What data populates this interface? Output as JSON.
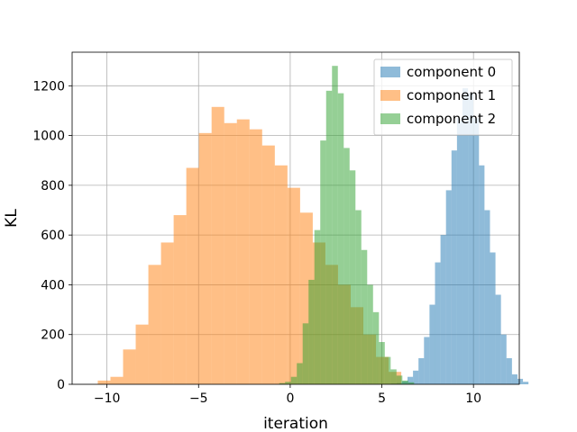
{
  "chart_data": {
    "type": "histogram",
    "xlabel": "iteration",
    "ylabel": "KL",
    "xlim": [
      -11.9,
      12.5
    ],
    "ylim": [
      0,
      1335
    ],
    "xticks": [
      -10,
      -5,
      0,
      5,
      10
    ],
    "xtick_labels": [
      "−10",
      "−5",
      "0",
      "5",
      "10"
    ],
    "yticks": [
      0,
      200,
      400,
      600,
      800,
      1000,
      1200
    ],
    "ytick_labels": [
      "0",
      "200",
      "400",
      "600",
      "800",
      "1000",
      "1200"
    ],
    "grid": true,
    "legend_position": "top-right",
    "series": [
      {
        "name": "component 0",
        "color": "#1f77b4",
        "alpha": 0.5,
        "bin_start": 5.5,
        "bin_width": 0.3,
        "counts": [
          3,
          5,
          12,
          30,
          55,
          105,
          190,
          320,
          490,
          600,
          780,
          940,
          1070,
          1190,
          1170,
          1070,
          880,
          700,
          530,
          360,
          200,
          105,
          40,
          22,
          10
        ]
      },
      {
        "name": "component 1",
        "color": "#ff7f0e",
        "alpha": 0.5,
        "bin_start": -10.5,
        "bin_width": 0.69,
        "counts": [
          15,
          30,
          140,
          240,
          480,
          570,
          680,
          870,
          1010,
          1115,
          1050,
          1065,
          1025,
          960,
          880,
          790,
          690,
          570,
          480,
          400,
          310,
          200,
          110,
          50
        ]
      },
      {
        "name": "component 2",
        "color": "#2ca02c",
        "alpha": 0.5,
        "bin_start": -0.6,
        "bin_width": 0.32,
        "counts": [
          5,
          10,
          30,
          85,
          245,
          420,
          620,
          980,
          1180,
          1280,
          1170,
          950,
          860,
          700,
          540,
          400,
          290,
          170,
          110,
          60,
          35,
          15,
          8
        ]
      }
    ]
  }
}
